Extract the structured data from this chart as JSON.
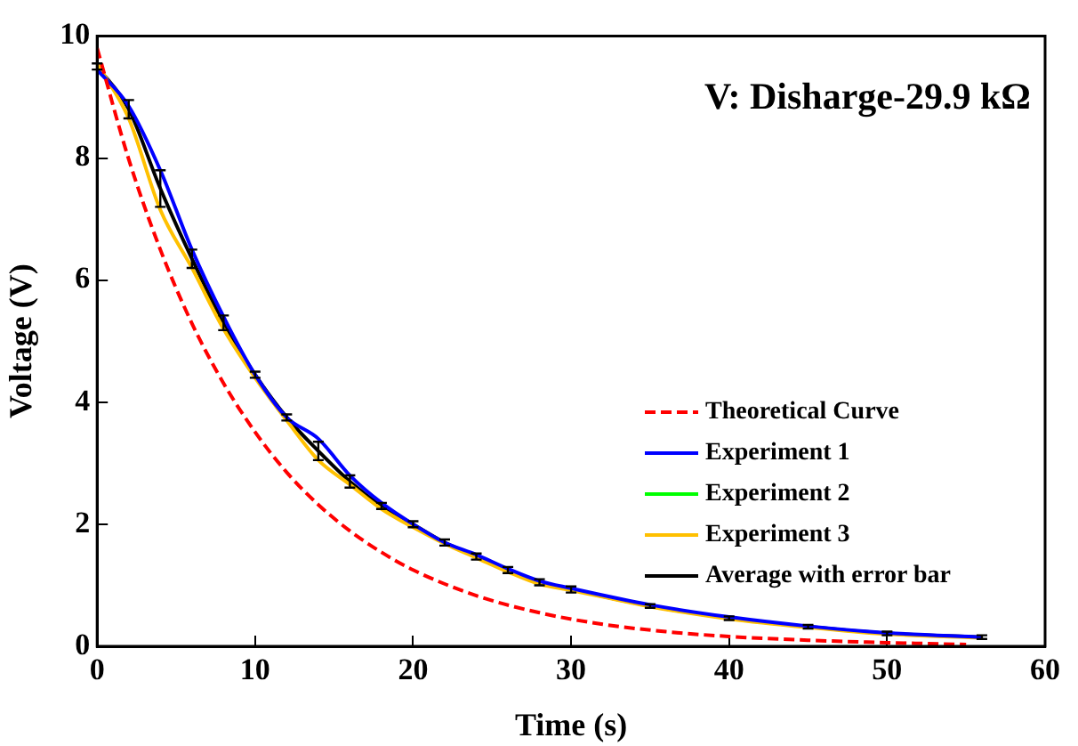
{
  "chart_data": {
    "type": "line",
    "title": "V: Disharge-29.9 kΩ",
    "xlabel": "Time (s)",
    "ylabel": "Voltage (V)",
    "x": [
      0,
      2,
      4,
      6,
      8,
      10,
      12,
      14,
      16,
      18,
      20,
      22,
      24,
      26,
      28,
      30,
      35,
      40,
      45,
      50,
      56
    ],
    "series": [
      {
        "name": "Theoretical Curve",
        "color": "#ff0000",
        "line_style": "dashed",
        "x": [
          0,
          2,
          4,
          6,
          8,
          10,
          12,
          14,
          16,
          18,
          20,
          24,
          28,
          32,
          36,
          40,
          45,
          50,
          55
        ],
        "values": [
          9.8,
          7.98,
          6.5,
          5.29,
          4.31,
          3.51,
          2.85,
          2.32,
          1.89,
          1.54,
          1.25,
          0.83,
          0.55,
          0.36,
          0.24,
          0.16,
          0.1,
          0.06,
          0.03
        ]
      },
      {
        "name": "Experiment 1",
        "color": "#0000ff",
        "values": [
          9.45,
          8.85,
          7.8,
          6.5,
          5.4,
          4.45,
          3.75,
          3.4,
          2.8,
          2.35,
          2.0,
          1.7,
          1.5,
          1.27,
          1.07,
          0.95,
          0.68,
          0.48,
          0.33,
          0.22,
          0.15
        ]
      },
      {
        "name": "Experiment 2",
        "color": "#00ff00",
        "values": [
          null,
          null,
          null,
          null,
          null,
          null,
          null,
          null,
          null,
          null,
          null,
          null,
          null,
          null,
          null,
          null,
          null,
          null,
          null,
          null,
          null
        ]
      },
      {
        "name": "Experiment 3",
        "color": "#ffc000",
        "values": [
          9.55,
          8.65,
          7.15,
          6.2,
          5.2,
          4.4,
          3.7,
          3.05,
          2.65,
          2.25,
          1.95,
          1.68,
          1.45,
          1.22,
          1.02,
          0.92,
          0.65,
          0.45,
          0.31,
          0.2,
          0.14
        ]
      },
      {
        "name": "Average with error bar",
        "color": "#000000",
        "values": [
          9.5,
          8.8,
          7.5,
          6.35,
          5.3,
          4.45,
          3.75,
          3.2,
          2.7,
          2.3,
          2.0,
          1.7,
          1.47,
          1.25,
          1.05,
          0.93,
          0.66,
          0.46,
          0.32,
          0.21,
          0.15
        ],
        "errors": [
          0.05,
          0.15,
          0.3,
          0.15,
          0.12,
          0.05,
          0.05,
          0.15,
          0.1,
          0.05,
          0.05,
          0.05,
          0.05,
          0.05,
          0.05,
          0.05,
          0.03,
          0.03,
          0.03,
          0.03,
          0.03
        ]
      }
    ],
    "xlim": [
      0,
      60
    ],
    "xticks": [
      0,
      10,
      20,
      30,
      40,
      50,
      60
    ],
    "ylim": [
      0,
      10
    ],
    "yticks": [
      0,
      2,
      4,
      6,
      8,
      10
    ],
    "grid": false,
    "legend": "bottom right"
  }
}
